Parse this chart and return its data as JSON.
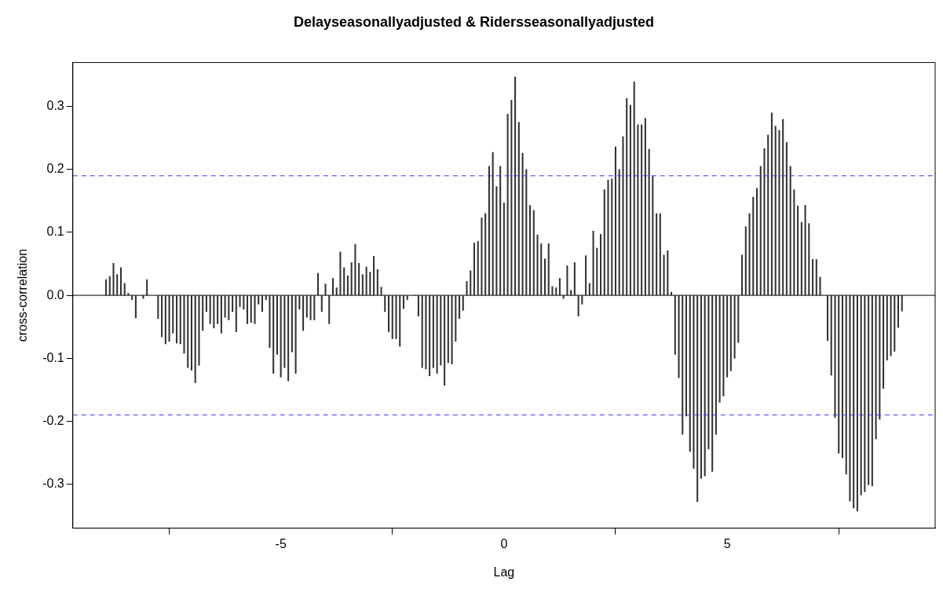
{
  "chart_data": {
    "type": "bar",
    "title": "Delayseasonallyadjusted & Ridersseasonallyadjusted",
    "xlabel": "Lag",
    "ylabel": "cross-correlation",
    "color": "#333333",
    "x": [
      -8.917,
      -8.833,
      -8.75,
      -8.667,
      -8.583,
      -8.5,
      -8.417,
      -8.333,
      -8.25,
      -8.167,
      -8.083,
      -8,
      -7.917,
      -7.833,
      -7.75,
      -7.667,
      -7.583,
      -7.5,
      -7.417,
      -7.333,
      -7.25,
      -7.167,
      -7.083,
      -7,
      -6.917,
      -6.833,
      -6.75,
      -6.667,
      -6.583,
      -6.5,
      -6.417,
      -6.333,
      -6.25,
      -6.167,
      -6.083,
      -6,
      -5.917,
      -5.833,
      -5.75,
      -5.667,
      -5.583,
      -5.5,
      -5.417,
      -5.333,
      -5.25,
      -5.167,
      -5.083,
      -5,
      -4.917,
      -4.833,
      -4.75,
      -4.667,
      -4.583,
      -4.5,
      -4.417,
      -4.333,
      -4.25,
      -4.167,
      -4.083,
      -4,
      -3.917,
      -3.833,
      -3.75,
      -3.667,
      -3.583,
      -3.5,
      -3.417,
      -3.333,
      -3.25,
      -3.167,
      -3.083,
      -3,
      -2.917,
      -2.833,
      -2.75,
      -2.667,
      -2.583,
      -2.5,
      -2.417,
      -2.333,
      -2.25,
      -2.167,
      -2.083,
      -2,
      -1.917,
      -1.833,
      -1.75,
      -1.667,
      -1.583,
      -1.5,
      -1.417,
      -1.333,
      -1.25,
      -1.167,
      -1.083,
      -1,
      -0.917,
      -0.833,
      -0.75,
      -0.667,
      -0.583,
      -0.5,
      -0.417,
      -0.333,
      -0.25,
      -0.167,
      -0.083,
      0,
      0.083,
      0.167,
      0.25,
      0.333,
      0.417,
      0.5,
      0.583,
      0.667,
      0.75,
      0.833,
      0.917,
      1,
      1.083,
      1.167,
      1.25,
      1.333,
      1.417,
      1.5,
      1.583,
      1.667,
      1.75,
      1.833,
      1.917,
      2,
      2.083,
      2.167,
      2.25,
      2.333,
      2.417,
      2.5,
      2.583,
      2.667,
      2.75,
      2.833,
      2.917,
      3,
      3.083,
      3.167,
      3.25,
      3.333,
      3.417,
      3.5,
      3.583,
      3.667,
      3.75,
      3.833,
      3.917,
      4,
      4.083,
      4.167,
      4.25,
      4.333,
      4.417,
      4.5,
      4.583,
      4.667,
      4.75,
      4.833,
      4.917,
      5,
      5.083,
      5.167,
      5.25,
      5.333,
      5.417,
      5.5,
      5.583,
      5.667,
      5.75,
      5.833,
      5.917,
      6,
      6.083,
      6.167,
      6.25,
      6.333,
      6.417,
      6.5,
      6.583,
      6.667,
      6.75,
      6.833,
      6.917,
      7,
      7.083,
      7.167,
      7.25,
      7.333,
      7.417,
      7.5,
      7.583,
      7.667,
      7.75,
      7.833,
      7.917,
      8,
      8.083,
      8.167,
      8.25,
      8.333,
      8.417,
      8.5,
      8.583,
      8.667,
      8.75,
      8.833,
      8.917
    ],
    "values": [
      0.025,
      0.03,
      0.051,
      0.033,
      0.044,
      0.019,
      0.003,
      -0.007,
      -0.036,
      null,
      -0.005,
      0.025,
      null,
      null,
      -0.037,
      -0.066,
      -0.077,
      -0.073,
      -0.06,
      -0.076,
      -0.077,
      -0.092,
      -0.115,
      -0.119,
      -0.139,
      -0.111,
      -0.056,
      -0.026,
      -0.045,
      -0.052,
      -0.045,
      -0.06,
      -0.035,
      -0.039,
      -0.026,
      -0.058,
      -0.018,
      -0.022,
      -0.045,
      -0.043,
      -0.045,
      -0.014,
      -0.026,
      -0.007,
      -0.083,
      -0.124,
      -0.094,
      -0.13,
      -0.115,
      -0.136,
      -0.09,
      -0.124,
      -0.022,
      -0.056,
      -0.035,
      -0.039,
      -0.039,
      0.035,
      -0.026,
      0.018,
      -0.045,
      0.027,
      0.012,
      0.069,
      0.044,
      0.031,
      0.052,
      0.081,
      0.051,
      0.033,
      0.045,
      0.037,
      0.062,
      0.041,
      0.013,
      -0.026,
      -0.058,
      -0.069,
      -0.069,
      -0.081,
      -0.021,
      -0.007,
      null,
      0,
      -0.033,
      -0.115,
      -0.117,
      -0.128,
      -0.115,
      -0.124,
      -0.111,
      -0.143,
      -0.107,
      -0.109,
      -0.073,
      -0.037,
      -0.024,
      0.022,
      0.039,
      0.083,
      0.086,
      0.123,
      0.13,
      0.205,
      0.227,
      0.173,
      0.205,
      0.147,
      0.288,
      0.31,
      0.347,
      0.275,
      0.226,
      0.2,
      0.143,
      0.135,
      0.096,
      0.082,
      0.058,
      0.082,
      0.014,
      0.012,
      0.027,
      -0.005,
      0.047,
      0.008,
      0.052,
      -0.033,
      -0.014,
      0.063,
      0.019,
      0.102,
      0.075,
      0.097,
      0.168,
      0.183,
      0.185,
      0.236,
      0.2,
      0.252,
      0.313,
      0.302,
      0.339,
      0.271,
      0.271,
      0.281,
      0.232,
      0.189,
      0.13,
      0.13,
      0.064,
      0.071,
      0.005,
      -0.094,
      -0.131,
      -0.221,
      -0.192,
      -0.248,
      -0.275,
      -0.328,
      -0.291,
      -0.287,
      -0.244,
      -0.28,
      -0.221,
      -0.17,
      -0.16,
      -0.13,
      -0.12,
      -0.1,
      -0.075,
      0.064,
      0.109,
      0.13,
      0.156,
      0.17,
      0.205,
      0.233,
      0.255,
      0.29,
      0.269,
      0.262,
      0.28,
      0.243,
      0.205,
      0.168,
      0.142,
      0.116,
      0.143,
      0.114,
      0.057,
      0.057,
      0.029,
      null,
      -0.072,
      -0.127,
      -0.194,
      -0.251,
      -0.258,
      -0.284,
      -0.327,
      -0.338,
      -0.343,
      -0.317,
      -0.312,
      -0.301,
      -0.303,
      -0.228,
      -0.197,
      -0.148,
      -0.103,
      -0.096,
      -0.089,
      -0.051,
      -0.025
    ],
    "xlim": [
      -9.66,
      9.66
    ],
    "xticks": [
      -5,
      0,
      5
    ],
    "ylim": [
      -0.37,
      0.37
    ],
    "yticks": [
      -0.3,
      -0.2,
      -0.1,
      {
        "value": 0,
        "label": "0.0"
      },
      0.1,
      0.2,
      0.3
    ],
    "ref_lines": [
      {
        "axis": "y",
        "value": 0.19,
        "color": "#3333ff",
        "line_style": "dashed"
      },
      {
        "axis": "y",
        "value": -0.19,
        "color": "#3333ff",
        "line_style": "dashed"
      },
      {
        "axis": "y",
        "value": 0,
        "color": "#000000",
        "line_style": "solid"
      }
    ]
  }
}
